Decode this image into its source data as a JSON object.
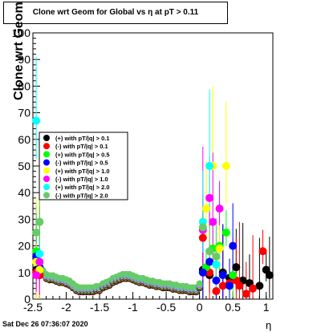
{
  "title": "Clone wrt Geom for Global vs   η at pT > 0.11",
  "footer": "Sat Dec 26 07:36:07 2020",
  "chart_data": {
    "type": "scatter",
    "title": "Clone wrt Geom for Global vs   η at pT > 0.11",
    "xlabel": "η",
    "ylabel": "Clone wrt Geom (%)",
    "xlim": [
      -2.5,
      1.1
    ],
    "ylim": [
      0,
      100
    ],
    "x_ticks": [
      "-2.5",
      "-2",
      "-1.5",
      "-1",
      "-0.5",
      "0",
      "0.5",
      "1"
    ],
    "y_ticks": [
      "0",
      "10",
      "20",
      "30",
      "40",
      "50",
      "60",
      "70",
      "80",
      "90",
      "100"
    ],
    "grid": false,
    "legend_position": "left-middle",
    "series": [
      {
        "name": "(+) with pT/|q| > 0.1",
        "color": "#000000",
        "points": [
          [
            -2.45,
            11
          ],
          [
            -2.4,
            9
          ],
          [
            0.05,
            11
          ],
          [
            0.15,
            9
          ],
          [
            0.35,
            10
          ],
          [
            0.45,
            8
          ],
          [
            0.55,
            12
          ],
          [
            0.65,
            7
          ],
          [
            0.75,
            6
          ],
          [
            0.9,
            5
          ],
          [
            1.0,
            11
          ],
          [
            1.05,
            9
          ]
        ]
      },
      {
        "name": "(-) with pT/|q| > 0.1",
        "color": "#ff0000",
        "points": [
          [
            -2.45,
            10
          ],
          [
            -2.4,
            9
          ],
          [
            0.05,
            23
          ],
          [
            0.15,
            10
          ],
          [
            0.25,
            3
          ],
          [
            0.35,
            5
          ],
          [
            0.45,
            6
          ],
          [
            0.55,
            7
          ],
          [
            0.6,
            5
          ],
          [
            0.7,
            2
          ],
          [
            0.8,
            4
          ],
          [
            0.95,
            18
          ]
        ]
      },
      {
        "name": "(+) with pT/|q| > 0.5",
        "color": "#00ff00",
        "points": [
          [
            -2.45,
            18
          ],
          [
            -2.4,
            29
          ],
          [
            0.1,
            12
          ],
          [
            0.2,
            19
          ],
          [
            0.3,
            20
          ],
          [
            0.4,
            25
          ],
          [
            0.5,
            9
          ]
        ]
      },
      {
        "name": "(-) with pT/|q| > 0.5",
        "color": "#0000ff",
        "points": [
          [
            -2.45,
            16
          ],
          [
            -2.4,
            12
          ],
          [
            0.05,
            10
          ],
          [
            0.15,
            14
          ],
          [
            0.25,
            7
          ],
          [
            0.35,
            9
          ],
          [
            0.45,
            5
          ],
          [
            0.5,
            20
          ]
        ]
      },
      {
        "name": "(+) with pT/|q| > 1.0",
        "color": "#ffff00",
        "points": [
          [
            -2.45,
            14
          ],
          [
            -2.4,
            11
          ],
          [
            0.1,
            34
          ],
          [
            0.2,
            50
          ],
          [
            0.3,
            19
          ],
          [
            0.4,
            50
          ]
        ]
      },
      {
        "name": "(-) with pT/|q| > 1.0",
        "color": "#ff00ff",
        "points": [
          [
            -2.45,
            9
          ],
          [
            -2.4,
            14
          ],
          [
            0.05,
            26
          ],
          [
            0.15,
            38
          ],
          [
            0.2,
            29
          ],
          [
            0.3,
            34
          ]
        ]
      },
      {
        "name": "(+) with pT/|q| > 2.0",
        "color": "#00ffff",
        "points": [
          [
            -2.45,
            67
          ],
          [
            -2.4,
            17
          ],
          [
            0.05,
            29
          ],
          [
            0.15,
            50
          ],
          [
            0.25,
            13
          ]
        ]
      },
      {
        "name": "(-) with pT/|q| > 2.0",
        "color": "#66cc66",
        "points": [
          [
            -2.45,
            25
          ],
          [
            -2.4,
            29
          ],
          [
            0.05,
            27
          ],
          [
            0.15,
            18
          ],
          [
            0.25,
            16
          ]
        ]
      }
    ],
    "band_series": {
      "colors": [
        "#000000",
        "#ff0000",
        "#00ff00",
        "#0000ff",
        "#ffff00",
        "#ff00ff",
        "#00ffff",
        "#66cc66"
      ],
      "points": [
        [
          -2.35,
          10
        ],
        [
          -2.3,
          8.5
        ],
        [
          -2.25,
          8
        ],
        [
          -2.2,
          8
        ],
        [
          -2.15,
          7.5
        ],
        [
          -2.1,
          7
        ],
        [
          -2.05,
          7
        ],
        [
          -2.0,
          6.5
        ],
        [
          -1.95,
          6
        ],
        [
          -1.9,
          5
        ],
        [
          -1.85,
          4
        ],
        [
          -1.8,
          3.5
        ],
        [
          -1.75,
          3.5
        ],
        [
          -1.7,
          3.5
        ],
        [
          -1.65,
          3.5
        ],
        [
          -1.6,
          3.5
        ],
        [
          -1.55,
          4
        ],
        [
          -1.5,
          4
        ],
        [
          -1.45,
          5
        ],
        [
          -1.4,
          5.5
        ],
        [
          -1.35,
          6
        ],
        [
          -1.3,
          7
        ],
        [
          -1.25,
          7.5
        ],
        [
          -1.2,
          8
        ],
        [
          -1.15,
          8.5
        ],
        [
          -1.1,
          8.5
        ],
        [
          -1.05,
          8.5
        ],
        [
          -1.0,
          8
        ],
        [
          -0.95,
          7.5
        ],
        [
          -0.9,
          7
        ],
        [
          -0.85,
          7
        ],
        [
          -0.8,
          6.5
        ],
        [
          -0.75,
          6
        ],
        [
          -0.7,
          6
        ],
        [
          -0.65,
          5.5
        ],
        [
          -0.6,
          5.5
        ],
        [
          -0.55,
          5
        ],
        [
          -0.5,
          5
        ],
        [
          -0.45,
          5
        ],
        [
          -0.4,
          4.5
        ],
        [
          -0.35,
          4.5
        ],
        [
          -0.3,
          4
        ],
        [
          -0.25,
          4
        ],
        [
          -0.2,
          4
        ],
        [
          -0.15,
          3.5
        ],
        [
          -0.1,
          3.5
        ],
        [
          -0.05,
          3.5
        ],
        [
          0.0,
          5
        ]
      ]
    }
  }
}
